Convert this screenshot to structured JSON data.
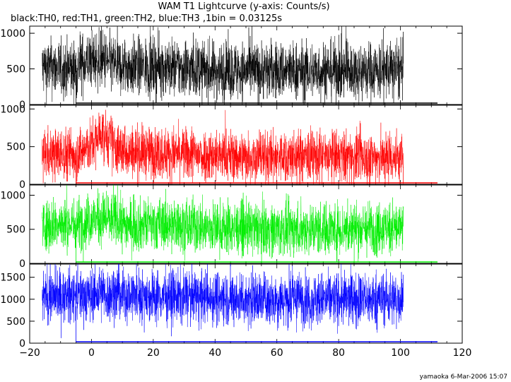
{
  "chart_data": {
    "type": "line",
    "title": "WAM T1 Lightcurve (y-axis: Counts/s)",
    "subtitle": "black:TH0, red:TH1, green:TH2, blue:TH3 ,1bin = 0.03125s",
    "footer": "yamaoka  6-Mar-2006 15:07",
    "xlim": [
      -20,
      120
    ],
    "x_ticks": [
      -20,
      0,
      20,
      40,
      60,
      80,
      100,
      120
    ],
    "x_tick_labels": [
      "−20",
      "0",
      "20",
      "40",
      "60",
      "80",
      "100",
      "120"
    ],
    "data_x_range": [
      -16,
      101
    ],
    "baseline_x_range": [
      -5,
      112
    ],
    "panels": [
      {
        "series": "TH0",
        "color": "#000000",
        "ylim": [
          0,
          1100
        ],
        "y_ticks": [
          0,
          500,
          1000
        ],
        "y_tick_labels": [
          "0",
          "500",
          "1000"
        ],
        "profile": [
          [
            -16,
            520
          ],
          [
            -5,
            480
          ],
          [
            -4,
            560
          ],
          [
            0,
            620
          ],
          [
            4,
            610
          ],
          [
            10,
            530
          ],
          [
            25,
            520
          ],
          [
            40,
            470
          ],
          [
            60,
            470
          ],
          [
            80,
            470
          ],
          [
            101,
            480
          ]
        ],
        "noise": 200
      },
      {
        "series": "TH1",
        "color": "#ff0000",
        "ylim": [
          0,
          1050
        ],
        "y_ticks": [
          0,
          500,
          1000
        ],
        "y_tick_labels": [
          "0",
          "500",
          "1000"
        ],
        "profile": [
          [
            -16,
            400
          ],
          [
            -5,
            400
          ],
          [
            0,
            500
          ],
          [
            3,
            680
          ],
          [
            5,
            620
          ],
          [
            8,
            460
          ],
          [
            20,
            420
          ],
          [
            40,
            380
          ],
          [
            60,
            360
          ],
          [
            80,
            360
          ],
          [
            101,
            360
          ]
        ],
        "noise": 170
      },
      {
        "series": "TH2",
        "color": "#00ee00",
        "ylim": [
          0,
          1150
        ],
        "y_ticks": [
          0,
          500,
          1000
        ],
        "y_tick_labels": [
          "0",
          "500",
          "1000"
        ],
        "profile": [
          [
            -16,
            560
          ],
          [
            -5,
            570
          ],
          [
            0,
            640
          ],
          [
            5,
            660
          ],
          [
            12,
            560
          ],
          [
            25,
            570
          ],
          [
            40,
            520
          ],
          [
            60,
            500
          ],
          [
            80,
            510
          ],
          [
            101,
            520
          ]
        ],
        "noise": 190
      },
      {
        "series": "TH3",
        "color": "#0000ff",
        "ylim": [
          0,
          1800
        ],
        "y_ticks": [
          0,
          500,
          1000,
          1500
        ],
        "y_tick_labels": [
          "0",
          "500",
          "1000",
          "1500"
        ],
        "profile": [
          [
            -16,
            1050
          ],
          [
            0,
            1100
          ],
          [
            20,
            1080
          ],
          [
            40,
            1030
          ],
          [
            60,
            1000
          ],
          [
            80,
            1000
          ],
          [
            101,
            1000
          ]
        ],
        "noise": 300
      }
    ]
  }
}
